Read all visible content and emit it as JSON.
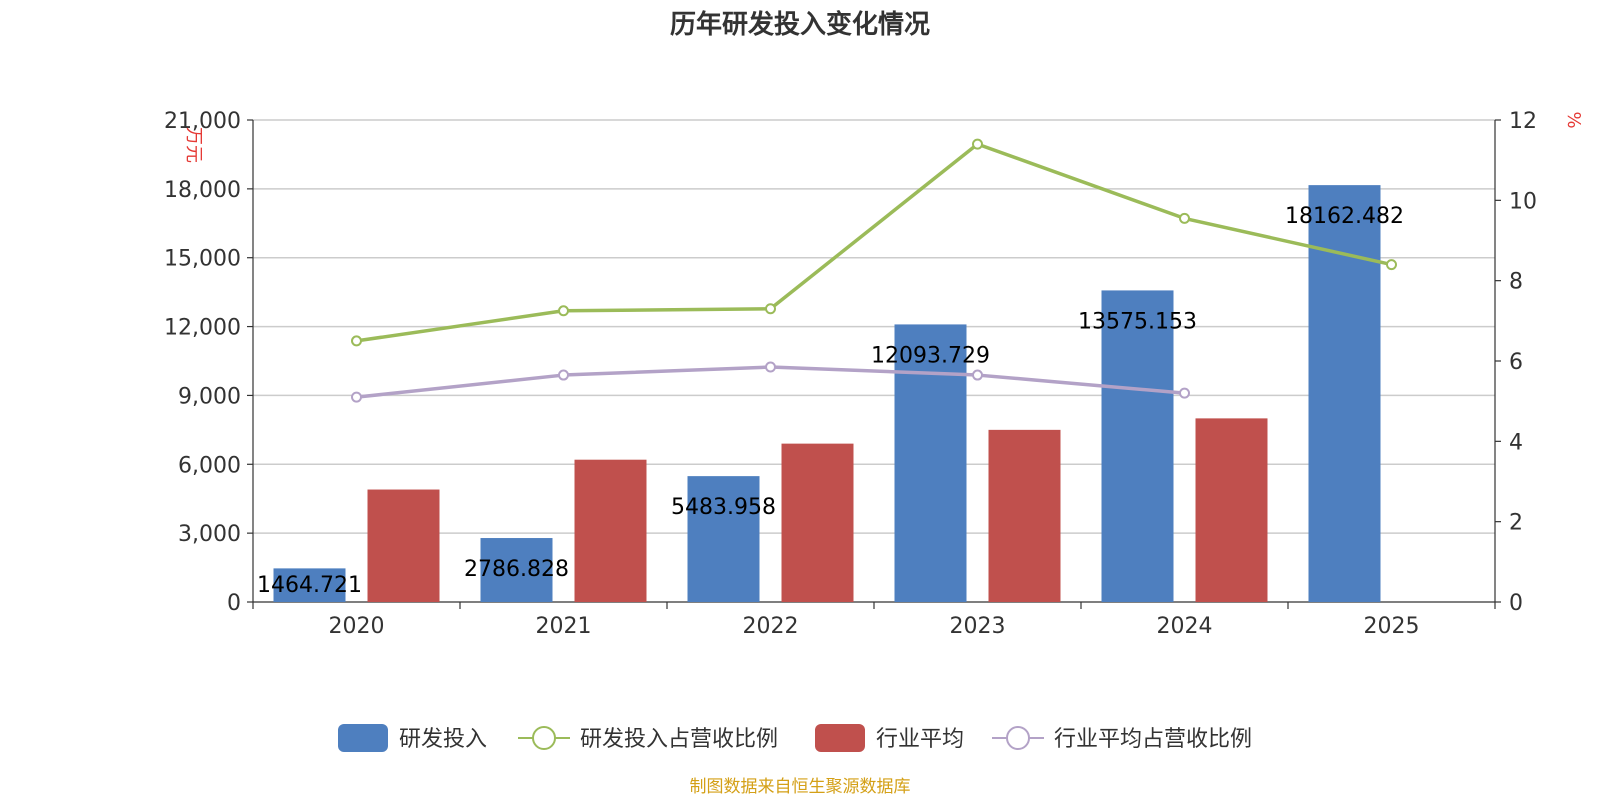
{
  "chart_data": {
    "type": "bar",
    "title": "历年研发投入变化情况",
    "categories": [
      "2020",
      "2021",
      "2022",
      "2023",
      "2024",
      "2025"
    ],
    "y_left": {
      "unit": "万元",
      "ylim": [
        0,
        21000
      ],
      "ticks": [
        "0",
        "3,000",
        "6,000",
        "9,000",
        "12,000",
        "15,000",
        "18,000",
        "21,000"
      ]
    },
    "y_right": {
      "unit": "%",
      "ylim": [
        0,
        12
      ],
      "ticks": [
        "0",
        "2",
        "4",
        "6",
        "8",
        "10",
        "12"
      ]
    },
    "grid": true,
    "legend_position": "bottom",
    "series": [
      {
        "name": "研发投入",
        "kind": "bar",
        "axis": "left",
        "color": "#4e7fbf",
        "values": [
          1464.721,
          2786.828,
          5483.958,
          12093.729,
          13575.153,
          18162.482
        ],
        "labels": [
          "1464.721",
          "2786.828",
          "5483.958",
          "12093.729",
          "13575.153",
          "18162.482"
        ]
      },
      {
        "name": "研发投入占营收比例",
        "kind": "line",
        "axis": "right",
        "color": "#9bbb59",
        "values": [
          6.5,
          7.25,
          7.3,
          11.4,
          9.55,
          8.4
        ]
      },
      {
        "name": "行业平均",
        "kind": "bar",
        "axis": "left",
        "color": "#c0504d",
        "values": [
          4900,
          6200,
          6900,
          7500,
          8000,
          null
        ]
      },
      {
        "name": "行业平均占营收比例",
        "kind": "line",
        "axis": "right",
        "color": "#b3a2c7",
        "values": [
          5.1,
          5.65,
          5.85,
          5.65,
          5.2,
          null
        ]
      }
    ],
    "source": "制图数据来自恒生聚源数据库"
  }
}
